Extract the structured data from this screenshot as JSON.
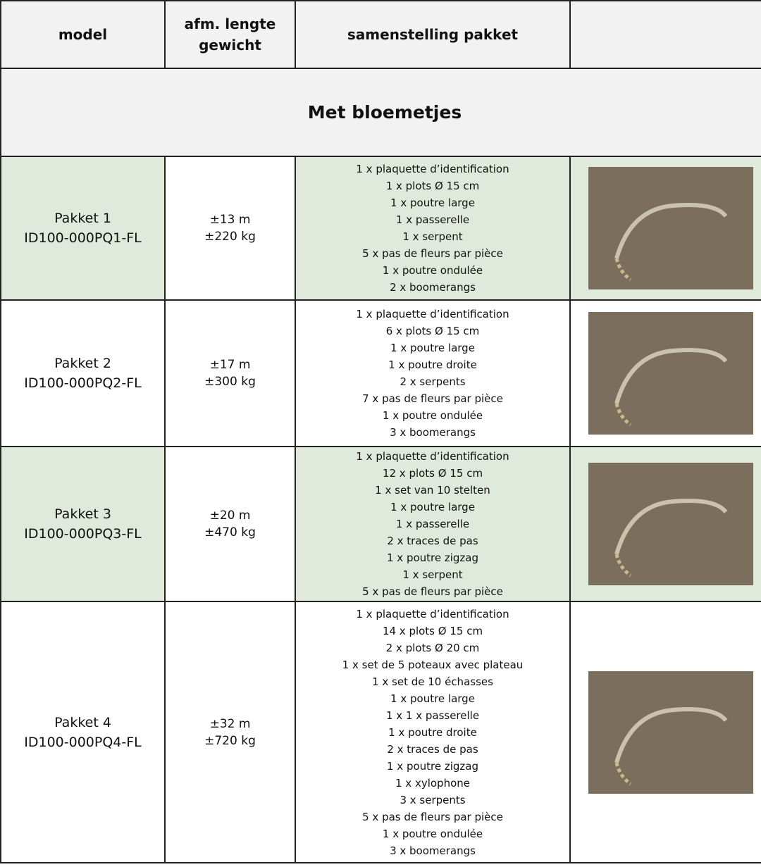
{
  "header": [
    "model",
    "afm. lengte gewicht",
    "samenstelling pakket",
    ""
  ],
  "section_title": "Met bloemetjes",
  "rows": [
    {
      "model": [
        "Pakket 1",
        "ID100-000PQ1-FL"
      ],
      "size": [
        "±13 m",
        "±220 kg"
      ],
      "contents": [
        "1 x plaquette d’identification",
        "1 x plots Ø 15 cm",
        "1 x poutre large",
        "1 x passerelle",
        "1 x serpent",
        "5 x pas de fleurs par pièce",
        "1 x poutre ondulée",
        "2 x boomerangs"
      ]
    },
    {
      "model": [
        "Pakket 2",
        "ID100-000PQ2-FL"
      ],
      "size": [
        "±17 m",
        "±300 kg"
      ],
      "contents": [
        "1 x plaquette d’identification",
        "6 x plots Ø 15 cm",
        "1 x poutre large",
        "1 x poutre droite",
        "2 x serpents",
        "7 x pas de fleurs par pièce",
        "1 x poutre ondulée",
        "3 x boomerangs"
      ]
    },
    {
      "model": [
        "Pakket 3",
        "ID100-000PQ3-FL"
      ],
      "size": [
        "±20 m",
        "±470 kg"
      ],
      "contents": [
        "1 x plaquette d’identification",
        "12 x plots Ø 15 cm",
        "1 x set van 10 stelten",
        "1 x poutre large",
        "1 x passerelle",
        "2 x traces de pas",
        "1 x poutre zigzag",
        "1 x serpent",
        "5 x pas de fleurs par pièce"
      ]
    },
    {
      "model": [
        "Pakket 4",
        "ID100-000PQ4-FL"
      ],
      "size": [
        "±32 m",
        "±720 kg"
      ],
      "contents": [
        "1 x plaquette d’identification",
        "14 x plots Ø 15 cm",
        "2 x plots Ø 20 cm",
        "1 x set de 5 poteaux avec plateau",
        "1 x set de 10 échasses",
        "1 x poutre large",
        "1 x 1 x passerelle",
        "1 x poutre droite",
        "2 x traces de pas",
        "1 x poutre zigzag",
        "1 x xylophone",
        "3 x serpents",
        "5 x pas de fleurs par pièce",
        "1 x poutre ondulée",
        "3 x boomerangs"
      ]
    }
  ]
}
